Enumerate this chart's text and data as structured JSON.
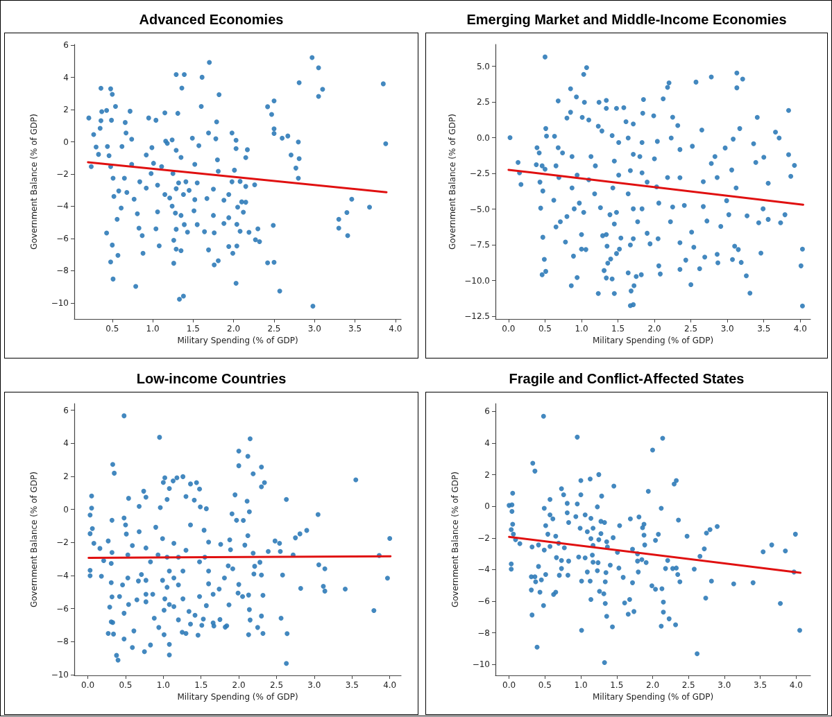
{
  "chart_data": [
    {
      "type": "scatter",
      "title": "Advanced Economies",
      "xlabel": "Military Spending (% of GDP)",
      "ylabel": "Government Balance (% of GDP)",
      "marker": "circle",
      "xlim": [
        0.03,
        4.07
      ],
      "ylim": [
        -11,
        6.05
      ],
      "xticks": [
        0.5,
        {
          "value": 1,
          "label": "1.0"
        },
        1.5,
        {
          "value": 2,
          "label": "2.0"
        },
        2.5,
        {
          "value": 3,
          "label": "3.0"
        },
        3.5,
        {
          "value": 4,
          "label": "4.0"
        }
      ],
      "yticks": [
        {
          "value": -10,
          "label": "−10"
        },
        {
          "value": -8,
          "label": "−8"
        },
        {
          "value": -6,
          "label": "−6"
        },
        {
          "value": -4,
          "label": "−4"
        },
        {
          "value": -2,
          "label": "−2"
        },
        0,
        2,
        4,
        6
      ],
      "series": [
        {
          "type": "scatter",
          "color": "#2f7bb8",
          "x": [
            0.21,
            0.24,
            0.36,
            0.48,
            0.5,
            0.54,
            0.43,
            0.37,
            0.36,
            0.49,
            0.27,
            0.35,
            0.3,
            0.33,
            0.46,
            0.44,
            0.48,
            0.51,
            0.52,
            0.58,
            0.61,
            0.56,
            0.43,
            0.5,
            0.48,
            0.57,
            0.51,
            0.79,
            0.72,
            0.66,
            0.67,
            0.62,
            0.74,
            0.74,
            0.65,
            0.68,
            0.77,
            0.81,
            0.83,
            0.87,
            0.88,
            1.08,
            1.04,
            1.06,
            0.95,
            1.04,
            1.15,
            1.16,
            1.18,
            0.99,
            0.92,
            1.01,
            1.11,
            0.98,
            0.84,
            0.92,
            1.06,
            1.15,
            1.21,
            1.29,
            1.39,
            1.36,
            1.31,
            1.24,
            1.29,
            1.35,
            1.25,
            1.32,
            1.41,
            1.29,
            1.38,
            1.24,
            1.28,
            1.35,
            1.39,
            1.29,
            1.26,
            1.29,
            1.26,
            1.33,
            1.38,
            1.35,
            1.43,
            1.55,
            1.51,
            1.52,
            1.45,
            1.55,
            1.52,
            1.57,
            1.49,
            1.6,
            1.61,
            1.7,
            1.82,
            1.79,
            1.69,
            1.78,
            1.8,
            1.81,
            1.75,
            1.67,
            1.75,
            1.64,
            1.76,
            1.81,
            1.76,
            1.69,
            1.88,
            1.94,
            1.88,
            1.94,
            1.98,
            2.03,
            2.03,
            2.01,
            1.98,
            2.08,
            2.05,
            2.1,
            2.04,
            2.08,
            1.94,
            2.04,
            1.99,
            2.03,
            2.17,
            2.15,
            2.15,
            2.15,
            2.12,
            2.19,
            2.3,
            2.26,
            2.27,
            2.32,
            2.42,
            2.5,
            2.49,
            2.42,
            2.5,
            2.47,
            2.5,
            2.5,
            2.6,
            2.67,
            2.57,
            2.71,
            2.81,
            2.8,
            2.81,
            2.77,
            2.8,
            2.97,
            3.05,
            3.1,
            3.05,
            2.98,
            3.3,
            3.3,
            3.4,
            3.46,
            3.41,
            3.68,
            3.85,
            3.88
          ],
          "values": [
            1.48,
            -1.54,
            3.33,
            3.29,
            2.95,
            2.2,
            1.95,
            1.87,
            1.31,
            1.34,
            0.45,
            0.84,
            -0.32,
            -0.78,
            -0.86,
            -0.29,
            -1.54,
            -2.26,
            -3.39,
            -3.05,
            -4.11,
            -4.81,
            -5.66,
            -6.41,
            -7.46,
            -7.05,
            -8.52,
            -8.98,
            1.9,
            1.2,
            0.55,
            -0.29,
            0.16,
            -1.4,
            -2.26,
            -3.14,
            -3.56,
            -4.47,
            -5.36,
            -5.82,
            -6.92,
            -6.46,
            -5.4,
            -4.35,
            1.48,
            1.34,
            1.8,
            0.04,
            -0.1,
            -0.36,
            -0.82,
            -1.33,
            -1.54,
            -1.97,
            -2.48,
            -2.87,
            -2.69,
            -3.27,
            -3.49,
            4.18,
            4.18,
            3.34,
            1.77,
            0.12,
            -0.53,
            -0.97,
            -1.97,
            -2.55,
            -2.48,
            -2.91,
            -3.27,
            -3.99,
            -4.42,
            -4.57,
            -5.14,
            -5.43,
            -6.11,
            -6.66,
            -7.54,
            -9.77,
            -9.58,
            -6.76,
            -5.61,
            -5.14,
            -4.28,
            -3.59,
            -3.01,
            -2.55,
            -1.4,
            -0.24,
            0.23,
            2.2,
            4.01,
            4.93,
            2.93,
            1.24,
            0.55,
            0.19,
            -1.12,
            -1.83,
            -2.94,
            -3.52,
            -4.57,
            -5.58,
            -5.65,
            -7.38,
            -7.64,
            -6.71,
            -5.07,
            -4.71,
            -3.63,
            -3.27,
            0.55,
            0.1,
            -0.42,
            -1.76,
            -2.48,
            -2.46,
            -4.06,
            -3.73,
            -5.12,
            -5.55,
            -6.5,
            -6.47,
            -6.92,
            -8.78,
            -0.49,
            -0.98,
            -2.77,
            -3.75,
            -4.37,
            -5.62,
            -5.4,
            -2.67,
            -6.08,
            -6.2,
            -7.51,
            -7.48,
            -5.19,
            2.18,
            2.54,
            1.7,
            0.81,
            0.52,
            0.23,
            0.36,
            -9.27,
            -0.82,
            3.67,
            -0.01,
            -1.04,
            -1.63,
            -2.26,
            5.23,
            4.6,
            3.26,
            2.82,
            -10.2,
            -4.81,
            -5.36,
            -4.39,
            -3.56,
            -5.82,
            -4.06,
            3.6,
            -0.12
          ]
        },
        {
          "type": "line",
          "color": "#e01010",
          "marker": "none",
          "x": [
            0.2,
            3.89
          ],
          "values": [
            -1.27,
            -3.13
          ]
        }
      ]
    },
    {
      "type": "scatter",
      "title": "Emerging Market and Middle-Income Economies",
      "xlabel": "Military Spending (% of GDP)",
      "ylabel": "Government Balance (% of GDP)",
      "marker": "circle",
      "xlim": [
        -0.18,
        4.14
      ],
      "ylim": [
        -12.69,
        6.53
      ],
      "xticks": [
        {
          "value": 0,
          "label": "0.0"
        },
        0.5,
        {
          "value": 1,
          "label": "1.0"
        },
        1.5,
        {
          "value": 2,
          "label": "2.0"
        },
        2.5,
        {
          "value": 3,
          "label": "3.0"
        },
        3.5,
        {
          "value": 4,
          "label": "4.0"
        }
      ],
      "yticks": [
        {
          "value": -12.5,
          "label": "−12.5"
        },
        {
          "value": -10,
          "label": "−10.0"
        },
        {
          "value": -7.5,
          "label": "−7.5"
        },
        {
          "value": -5,
          "label": "−5.0"
        },
        {
          "value": -2.5,
          "label": "−2.5"
        },
        {
          "value": 0,
          "label": "0.0"
        },
        2.5,
        {
          "value": 5,
          "label": "5.0"
        }
      ],
      "series": [
        {
          "type": "scatter",
          "color": "#2f7bb8",
          "x": [
            0.02,
            0.13,
            0.15,
            0.17,
            0.5,
            1.07,
            1.03,
            0.85,
            0.93,
            0.68,
            1.04,
            1.24,
            1.34,
            1.34,
            1.48,
            1.58,
            0.85,
            0.8,
            1.01,
            1.1,
            1.23,
            1.28,
            0.51,
            0.52,
            0.63,
            0.39,
            0.42,
            0.38,
            0.46,
            0.5,
            0.43,
            0.47,
            0.44,
            0.47,
            0.49,
            0.46,
            0.51,
            0.68,
            0.74,
            0.65,
            0.69,
            0.62,
            0.65,
            0.71,
            0.8,
            0.78,
            0.89,
            0.94,
            0.86,
            0.87,
            0.94,
            0.87,
            0.97,
            0.9,
            1.03,
            1,
            1.06,
            1,
            1.13,
            1.19,
            1.1,
            1.18,
            1.26,
            1.34,
            1.29,
            1.35,
            1.36,
            1.31,
            1.34,
            1.42,
            1.23,
            1.45,
            1.4,
            1.48,
            1.52,
            1.54,
            1.45,
            1.39,
            1.48,
            1.43,
            1.51,
            1.45,
            1.51,
            1.42,
            1.61,
            1.71,
            1.64,
            1.71,
            1.67,
            1.64,
            1.71,
            1.77,
            1.71,
            1.67,
            1.64,
            1.75,
            1.82,
            1.72,
            1.68,
            1.67,
            1.71,
            1.85,
            1.84,
            1.83,
            1.8,
            1.83,
            1.9,
            1.83,
            1.9,
            1.94,
            1.99,
            2.04,
            2,
            2.03,
            2.06,
            2.05,
            2.06,
            2.08,
            2.12,
            2.18,
            2.2,
            2.25,
            2.23,
            2.18,
            2.25,
            2.22,
            2.32,
            2.35,
            2.35,
            2.41,
            2.35,
            2.35,
            2.43,
            2.51,
            2.54,
            2.5,
            2.57,
            2.52,
            2.65,
            2.67,
            2.67,
            2.62,
            2.69,
            2.72,
            2.78,
            2.78,
            2.83,
            2.86,
            2.91,
            2.86,
            2.87,
            2.97,
            2.99,
            3.02,
            3.13,
            3.21,
            3.13,
            3.17,
            3.08,
            3.06,
            3.12,
            3.1,
            3.07,
            3.15,
            3.19,
            3.26,
            3.31,
            3.27,
            3.36,
            3.39,
            3.43,
            3.46,
            3.41,
            3.5,
            3.49,
            3.56,
            3.66,
            3.71,
            3.73,
            3.56,
            3.84,
            3.84,
            3.87,
            3.79,
            3.92,
            4.03,
            4.01,
            4.03
          ],
          "values": [
            0,
            -1.73,
            -2.46,
            -3.27,
            5.65,
            4.9,
            4.43,
            3.42,
            2.85,
            2.57,
            2.48,
            2.48,
            2.61,
            2.05,
            2.05,
            2.1,
            1.78,
            1.37,
            1.42,
            1.24,
            0.8,
            0.47,
            0.64,
            0.11,
            0.1,
            -0.7,
            -1.07,
            -1.89,
            -1.97,
            -2.21,
            -3.11,
            -3.73,
            -4.93,
            -6.97,
            -8.52,
            -9.59,
            -9.36,
            -0.7,
            -1.07,
            -1.97,
            -2.79,
            -4.38,
            -6.25,
            -5.88,
            -5.52,
            -7.3,
            -8.29,
            -9.79,
            -10.36,
            -1.32,
            -2.62,
            -3.52,
            -4.58,
            -4.98,
            -5.23,
            -6.78,
            -7.83,
            -7.8,
            -1.32,
            -1.97,
            -2.95,
            -3.93,
            -4.9,
            -6.78,
            -6.86,
            -7.59,
            -8.78,
            -9.3,
            -9.82,
            -9.89,
            -10.91,
            -10.91,
            -8.49,
            -8.11,
            -7.8,
            -7.02,
            -6.04,
            -5.39,
            -5.23,
            -3.52,
            -2.62,
            -1.64,
            -0.34,
            0.15,
            1.12,
            0.96,
            -0.02,
            -1.16,
            -2.3,
            -3.93,
            -4.98,
            -5.88,
            -7.07,
            -7.51,
            -9.46,
            -9.72,
            -9.59,
            -10.36,
            -10.73,
            -11.76,
            -11.69,
            2.67,
            1.71,
            -0.34,
            -1.32,
            -2.46,
            -3.11,
            -4.98,
            -6.69,
            -7.43,
            1.53,
            -0.26,
            -1.48,
            -3.44,
            -4.58,
            -7.07,
            -8.97,
            -9.54,
            2.72,
            3.52,
            3.84,
            1.43,
            -0.02,
            -2.79,
            -4.85,
            -5.88,
            0.85,
            -0.83,
            -2.8,
            -4.74,
            -7.35,
            -9.22,
            -8.57,
            -6.61,
            -7.67,
            -10.29,
            3.89,
            -0.6,
            0.54,
            -3.08,
            -4.82,
            -9.17,
            -8.36,
            -5.83,
            4.25,
            -1.81,
            -1.32,
            -2.79,
            -6.21,
            -8.16,
            -8.76,
            -0.72,
            -4.41,
            -5.39,
            4.53,
            4.1,
            3.49,
            0.64,
            -0.1,
            -2.26,
            -3.52,
            -7.59,
            -8.53,
            -7.83,
            -8.73,
            -9.67,
            -10.88,
            -5.47,
            -0.42,
            -1.73,
            -5.96,
            -8.08,
            1.42,
            -1.37,
            -4.98,
            -5.72,
            0.39,
            -0.02,
            -5.96,
            -3.19,
            1.91,
            -1.19,
            -2.7,
            -5.39,
            -1.94,
            -7.8,
            -8.97,
            -11.78
          ]
        },
        {
          "type": "line",
          "color": "#e01010",
          "marker": "none",
          "x": [
            0,
            4.04
          ],
          "values": [
            -2.25,
            -4.69
          ]
        }
      ]
    },
    {
      "type": "scatter",
      "title": "Low-income Countries",
      "xlabel": "Military Spending (% of GDP)",
      "ylabel": "Government Balance (% of GDP)",
      "marker": "circle",
      "xlim": [
        -0.18,
        4.15
      ],
      "ylim": [
        -10.04,
        6.4
      ],
      "xticks": [
        {
          "value": 0,
          "label": "0.0"
        },
        0.5,
        {
          "value": 1,
          "label": "1.0"
        },
        1.5,
        {
          "value": 2,
          "label": "2.0"
        },
        2.5,
        {
          "value": 3,
          "label": "3.0"
        },
        3.5,
        {
          "value": 4,
          "label": "4.0"
        }
      ],
      "yticks": [
        {
          "value": -10,
          "label": "−10"
        },
        {
          "value": -8,
          "label": "−8"
        },
        {
          "value": -6,
          "label": "−6"
        },
        {
          "value": -4,
          "label": "−4"
        },
        {
          "value": -2,
          "label": "−2"
        },
        0,
        2,
        4,
        6
      ],
      "series": [
        {
          "type": "scatter",
          "color": "#2f7bb8",
          "x": [
            0.48,
            0.95,
            2.15,
            2,
            2.12,
            2,
            2.3,
            2.19,
            2.34,
            2.3,
            0.33,
            0.35,
            3.55,
            0.05,
            0.05,
            0.03,
            0.06,
            0.03,
            0.08,
            0.03,
            0.03,
            0.18,
            0.16,
            0.21,
            0.32,
            0.27,
            0.32,
            0.31,
            0.31,
            0.32,
            0.29,
            0.31,
            0.33,
            0.27,
            0.34,
            0.38,
            0.4,
            0.48,
            0.48,
            0.46,
            0.53,
            0.42,
            0.54,
            0.61,
            0.59,
            0.65,
            0.67,
            0.71,
            0.53,
            0.59,
            0.51,
            0.5,
            0.54,
            0.48,
            0.74,
            0.77,
            0.68,
            0.68,
            0.77,
            0.83,
            0.77,
            0.77,
            0.86,
            0.77,
            0.83,
            0.75,
            0.88,
            0.94,
            1.01,
            1.08,
            1.08,
            1,
            1.02,
            1.08,
            1.13,
            1.18,
            1.26,
            1.05,
            0.96,
            0.9,
            0.99,
            0.93,
            1.05,
            1.14,
            1.08,
            0.99,
            1.05,
            1.02,
            1.01,
            1.08,
            1.14,
            1.2,
            1.25,
            1.3,
            1.36,
            1.42,
            1.46,
            1.51,
            1.53,
            1.57,
            1.48,
            1.34,
            1.26,
            1.2,
            1.14,
            1.26,
            1.2,
            1.3,
            1.36,
            1.3,
            1.36,
            1.44,
            1.48,
            1.41,
            1.49,
            1.57,
            1.54,
            1.6,
            1.55,
            1.48,
            1.6,
            1.6,
            1.66,
            1.74,
            1.66,
            1.67,
            1.75,
            1.84,
            1.82,
            1.87,
            1.81,
            1.86,
            1.92,
            1.76,
            1.88,
            1.89,
            1.91,
            1.95,
            1.97,
            2.06,
            2,
            1.99,
            2.05,
            2.13,
            2.14,
            2.15,
            2.13,
            2.25,
            2.3,
            2.32,
            2.32,
            2.3,
            2.2,
            2.21,
            2.28,
            2.08,
            2.12,
            2.19,
            2.14,
            2.11,
            2.39,
            2.48,
            2.54,
            2.55,
            2.58,
            2.56,
            2.64,
            2.63,
            2.63,
            2.72,
            2.75,
            2.81,
            2.82,
            2.9,
            3.05,
            3.06,
            3.14,
            3.12,
            3.14,
            3.41,
            3.79,
            3.86,
            3.97,
            4
          ],
          "values": [
            5.66,
            4.36,
            4.27,
            3.53,
            3.21,
            2.64,
            2.56,
            2.15,
            1.62,
            1.37,
            2.72,
            2.19,
            1.79,
            0.81,
            0.08,
            -0.34,
            -1.16,
            -1.47,
            -2.05,
            -3.69,
            -4.01,
            -4.04,
            -2.36,
            -3.1,
            -0.66,
            -1.91,
            -2.61,
            -3.27,
            -4.43,
            -5.29,
            -5.91,
            -6.8,
            -6.84,
            -7.5,
            -7.54,
            -8.83,
            -9.12,
            -7.84,
            -6.28,
            -4.57,
            -4.15,
            -5.27,
            -5.75,
            -7.35,
            -8.35,
            -5.47,
            -4.33,
            -3.94,
            -2.75,
            -2.19,
            -1.49,
            -0.94,
            0.67,
            -0.52,
            1.1,
            0.74,
            0.18,
            -1.35,
            -2.33,
            -3.17,
            -4.29,
            -5.13,
            -5.13,
            -5.59,
            -8.2,
            -8.6,
            -6.58,
            -7.14,
            -7.58,
            -8.16,
            -8.8,
            1.63,
            1.91,
            1.26,
            1.72,
            1.91,
            1.98,
            0.6,
            0.11,
            -1.08,
            -1.77,
            -2.75,
            -2.89,
            -2.05,
            -3.73,
            -4.29,
            -4.71,
            -5.41,
            -6.1,
            -5.75,
            -5.88,
            -6.68,
            -7.43,
            -7.5,
            -6.94,
            -6.4,
            -7.61,
            -7.01,
            -6.63,
            -5.82,
            -5.27,
            -6.17,
            -5.41,
            -4.57,
            -4.15,
            -3.73,
            -2.89,
            -2.47,
            -0.94,
            0.78,
            1.54,
            1.62,
            1.23,
            0.56,
            0.15,
            0.04,
            -1.26,
            -1.98,
            -2.89,
            -3.17,
            -3.73,
            -4.5,
            -5.13,
            -4.82,
            -6.86,
            -7.05,
            -6.66,
            -7.04,
            -7.12,
            -5.77,
            -4.15,
            -3.41,
            -3.59,
            -2.11,
            -1.84,
            -2.44,
            -0.27,
            0.88,
            -0.66,
            -0.67,
            -4.54,
            -5.06,
            -5.27,
            -5.18,
            -6.06,
            -6.69,
            -7.58,
            -7.14,
            -6.45,
            -7.5,
            -5.2,
            -3.97,
            -3.91,
            -3.44,
            -3.2,
            -2.16,
            -1.59,
            -2.65,
            -0.14,
            0.5,
            -2.54,
            -1.91,
            -2.05,
            -2.54,
            -3.97,
            -6.58,
            -7.51,
            -9.32,
            0.6,
            -2.75,
            -1.72,
            -1.48,
            -4.78,
            -1.27,
            -0.31,
            -3.35,
            -3.59,
            -4.65,
            -4.94,
            -4.82,
            -6.12,
            -2.79,
            -4.16,
            -1.76
          ]
        },
        {
          "type": "line",
          "color": "#e01010",
          "marker": "none",
          "x": [
            0.01,
            4.01
          ],
          "values": [
            -2.93,
            -2.84
          ]
        }
      ]
    },
    {
      "type": "scatter",
      "title": "Fragile and Conflict-Affected States",
      "xlabel": "Military Spending (% of GDP)",
      "ylabel": "Government Balance (% of GDP)",
      "marker": "circle",
      "xlim": [
        -0.19,
        4.2
      ],
      "ylim": [
        -10.69,
        6.5
      ],
      "xticks": [
        {
          "value": 0,
          "label": "0.0"
        },
        0.5,
        {
          "value": 1,
          "label": "1.0"
        },
        1.5,
        {
          "value": 2,
          "label": "2.0"
        },
        2.5,
        {
          "value": 3,
          "label": "3.0"
        },
        3.5,
        {
          "value": 4,
          "label": "4.0"
        }
      ],
      "yticks": [
        {
          "value": -10,
          "label": "−10"
        },
        {
          "value": -8,
          "label": "−8"
        },
        {
          "value": -6,
          "label": "−6"
        },
        {
          "value": -4,
          "label": "−4"
        },
        {
          "value": -2,
          "label": "−2"
        },
        0,
        2,
        4,
        6
      ],
      "series": [
        {
          "type": "scatter",
          "color": "#2f7bb8",
          "x": [
            0.48,
            0.95,
            2.14,
            2,
            0.33,
            0.36,
            1,
            1.13,
            1.25,
            1.46,
            2.33,
            2.3,
            1.94,
            0.05,
            0,
            0.04,
            0.04,
            0.05,
            0.03,
            0.06,
            0.09,
            0.15,
            0.03,
            0.03,
            0.57,
            0.49,
            0.73,
            0.76,
            0.81,
            0.81,
            0.95,
            1,
            0.93,
            0.83,
            0.57,
            0.61,
            0.51,
            0.54,
            0.32,
            0.41,
            0.49,
            0.57,
            0.65,
            0.69,
            0.77,
            0.66,
            0.73,
            0.83,
            0.73,
            0.7,
            0.82,
            0.41,
            0.31,
            0.36,
            0.37,
            0.45,
            0.51,
            0.31,
            0.43,
            0.48,
            0.62,
            0.65,
            0.32,
            0.39,
            0.97,
            1.06,
            1.01,
            1.01,
            1.09,
            1.13,
            1.14,
            1.17,
            1.23,
            1.24,
            1.16,
            1.17,
            1.25,
            1.14,
            1.09,
            0.99,
            1.06,
            1.14,
            1.17,
            1.28,
            1.33,
            1.28,
            1.36,
            1.37,
            1.23,
            1.29,
            1.26,
            1.32,
            1.34,
            1.36,
            1.33,
            1.35,
            1.34,
            1.41,
            1.44,
            1.45,
            1.51,
            1.53,
            1.54,
            1.59,
            1.61,
            1.66,
            1.68,
            1.69,
            1.72,
            1.72,
            1.74,
            1.8,
            1.79,
            1.79,
            1.81,
            1.85,
            1.86,
            1.88,
            1.88,
            1.89,
            1.91,
            1.99,
            2.04,
            2.04,
            2.08,
            2.12,
            2.13,
            2.15,
            2.15,
            2.12,
            2.23,
            2.32,
            2.18,
            2.21,
            2.28,
            2.33,
            2.35,
            2.38,
            2.36,
            2.48,
            2.58,
            2.62,
            2.66,
            2.72,
            2.74,
            2.75,
            2.8,
            2.82,
            2.9,
            3.13,
            3.4,
            3.54,
            3.66,
            3.78,
            3.85,
            3.97,
            3.99,
            4.05
          ],
          "values": [
            5.7,
            4.38,
            4.31,
            3.56,
            2.73,
            2.23,
            1.63,
            1.73,
            2.01,
            1.28,
            1.63,
            1.41,
            0.95,
            0.83,
            0.06,
            0.1,
            -0.32,
            -1.13,
            -1.47,
            -1.76,
            -2.11,
            -2.36,
            -3.64,
            -3.97,
            0.44,
            -0.12,
            1.12,
            0.73,
            0.19,
            -0.41,
            0.15,
            0.73,
            -0.65,
            -1.02,
            -0.54,
            -0.79,
            -1.22,
            -1.76,
            -2.57,
            -2.44,
            -2.76,
            -2.53,
            -1.89,
            -2.33,
            -2.62,
            -3.24,
            -3.42,
            -3.46,
            -3.93,
            -4.36,
            -4.35,
            -3.8,
            -4.45,
            -4.45,
            -4.77,
            -4.65,
            -4.31,
            -5.29,
            -5.43,
            -6.27,
            -5.57,
            -5.43,
            -6.87,
            -8.9,
            -3.2,
            -3.26,
            -4.73,
            -7.84,
            -4.15,
            -4.73,
            -5.89,
            -3.53,
            -4.07,
            -3.56,
            -3.08,
            -2.47,
            -2.11,
            -2.04,
            -1.6,
            -1.38,
            -0.54,
            -0.76,
            -1.38,
            -0.95,
            -1.02,
            -1.72,
            -2.24,
            -2.57,
            -0.03,
            0.65,
            -5.37,
            -5.53,
            -6.14,
            -6.95,
            -9.88,
            -4.19,
            -4.77,
            -3.72,
            -7.62,
            -1.98,
            -2.91,
            -3.9,
            -1.22,
            -4.49,
            -6.11,
            -6.82,
            -5.89,
            -0.79,
            -2.71,
            -4.83,
            -6.65,
            -4.15,
            -3.46,
            -3,
            -0.67,
            -3.37,
            -1.35,
            -1.13,
            -1.82,
            -2.44,
            -3.55,
            -5.02,
            -5.24,
            -2.15,
            -1.77,
            -0.12,
            -5.21,
            -6.05,
            -6.69,
            -7.58,
            -7.11,
            -7.49,
            -3.93,
            -3.42,
            -3.93,
            -3.9,
            -4.31,
            -4.77,
            -0.87,
            -1.89,
            -3.97,
            -9.32,
            -3.16,
            -2.69,
            -5.8,
            -1.69,
            -1.47,
            -4.73,
            -1.27,
            -4.9,
            -4.83,
            -2.87,
            -2.44,
            -6.14,
            -2.82,
            -4.15,
            -1.76,
            -7.84
          ]
        },
        {
          "type": "line",
          "color": "#e01010",
          "marker": "none",
          "x": [
            0,
            4.06
          ],
          "values": [
            -1.93,
            -4.2
          ]
        }
      ]
    }
  ]
}
